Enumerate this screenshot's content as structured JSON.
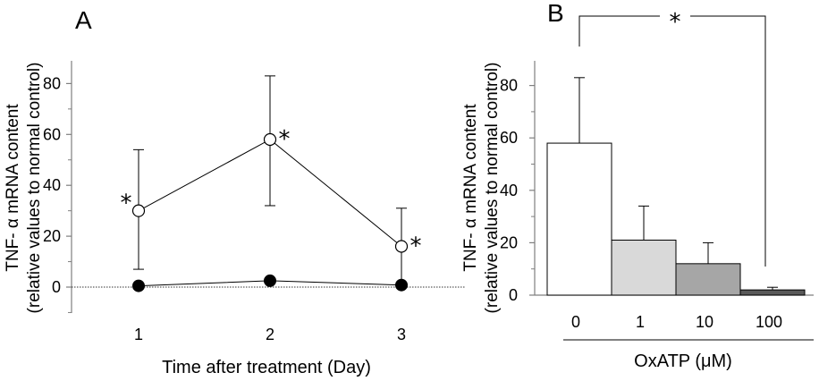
{
  "chart_data": [
    {
      "panel_label": "A",
      "type": "line",
      "x": [
        1,
        2,
        3
      ],
      "xticks": [
        "1",
        "2",
        "3"
      ],
      "xlabel": "Time after treatment (Day)",
      "ylabel_line1": "TNF- α  mRNA content",
      "ylabel_line2": "(relative values to  normal control)",
      "yticks": [
        "0",
        "20",
        "40",
        "60",
        "80"
      ],
      "ylim": [
        -10,
        88
      ],
      "reference_line_y": 0,
      "series": [
        {
          "marker": "open-circle",
          "values": [
            30,
            58,
            16
          ],
          "err_upper": [
            54,
            83,
            31
          ],
          "err_lower": [
            7,
            32,
            1
          ],
          "significance": [
            "*",
            "*",
            "*"
          ]
        },
        {
          "marker": "filled-circle",
          "values": [
            0.5,
            2.5,
            0.8
          ],
          "err_upper": [
            null,
            null,
            null
          ],
          "err_lower": [
            null,
            null,
            null
          ]
        }
      ]
    },
    {
      "panel_label": "B",
      "type": "bar",
      "categories": [
        "0",
        "1",
        "10",
        "100"
      ],
      "values": [
        58,
        21,
        12,
        2
      ],
      "err_upper": [
        83,
        34,
        20,
        3
      ],
      "bar_colors": [
        "#ffffff",
        "#d9d9d9",
        "#a6a6a6",
        "#595959"
      ],
      "xlabel": "OxATP (μM)",
      "ylabel_line1": "TNF- α  mRNA content",
      "ylabel_line2": "(relative values to  normal control)",
      "yticks": [
        "0",
        "20",
        "40",
        "60",
        "80"
      ],
      "ylim": [
        0,
        88
      ],
      "bracket_label": "*",
      "bracket_between": [
        "0",
        "100"
      ]
    }
  ]
}
